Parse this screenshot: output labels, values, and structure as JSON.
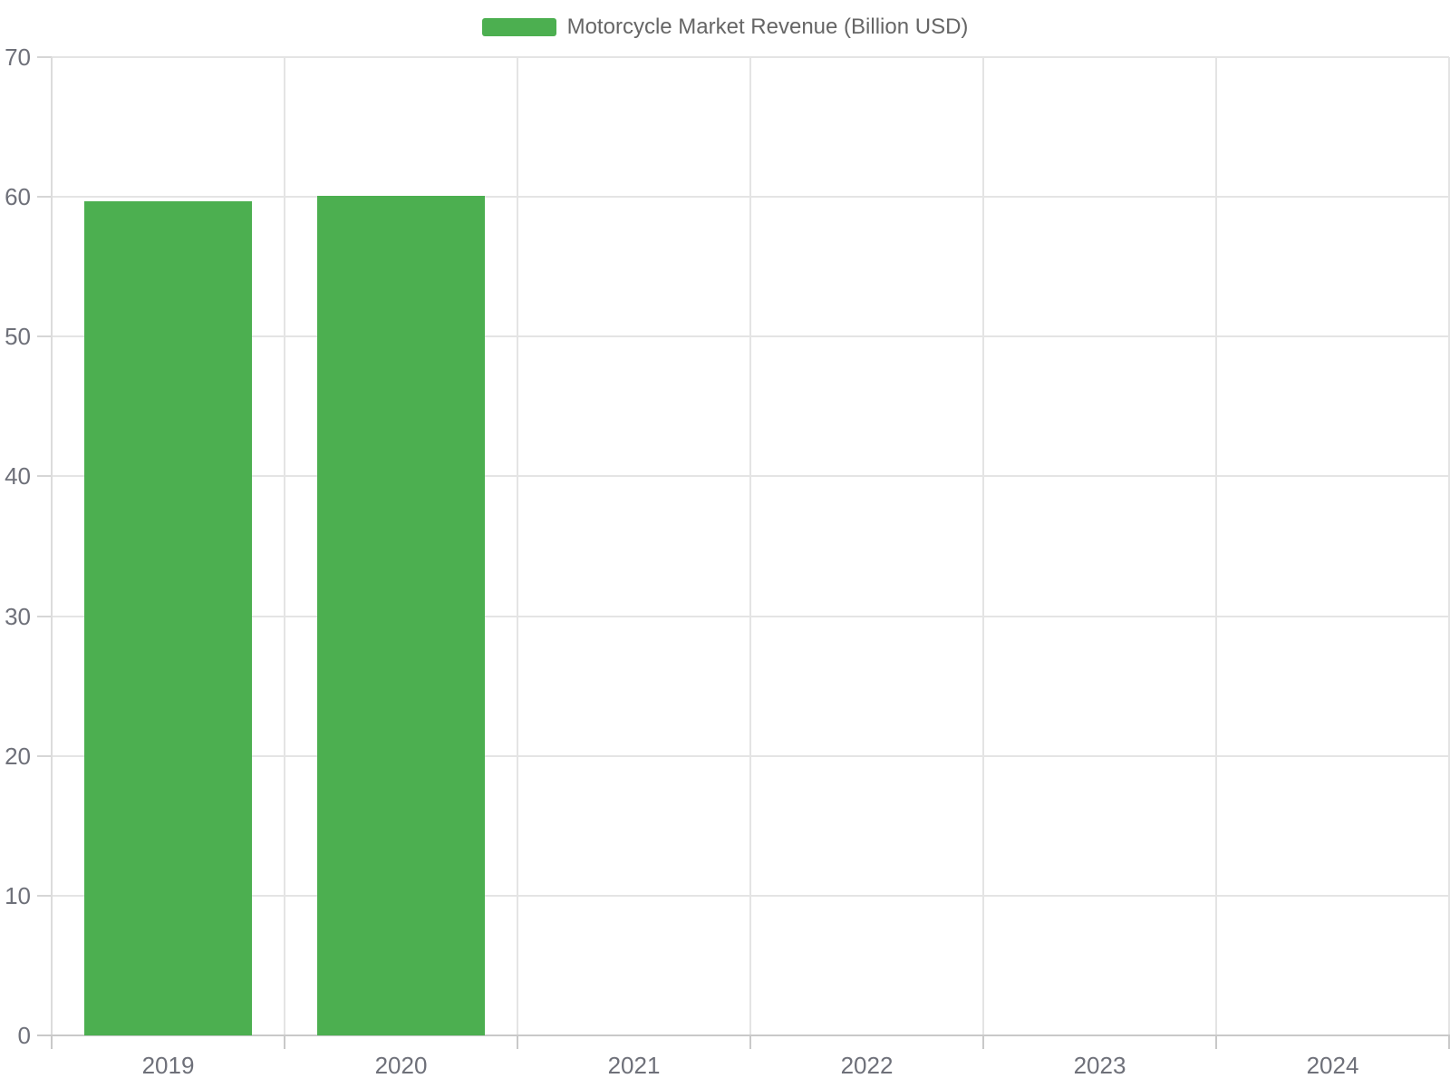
{
  "chart_data": {
    "type": "bar",
    "title": "",
    "categories": [
      "2019",
      "2020",
      "2021",
      "2022",
      "2023",
      "2024"
    ],
    "series": [
      {
        "name": "Motorcycle Market Revenue (Billion USD)",
        "color": "#4caf50",
        "values": [
          59.7,
          60.1,
          null,
          null,
          null,
          null
        ]
      }
    ],
    "xlabel": "",
    "ylabel": "",
    "ylim": [
      0,
      70
    ],
    "yticks": [
      0,
      10,
      20,
      30,
      40,
      50,
      60,
      70
    ],
    "grid": true,
    "legend_position": "top-center",
    "bar_width_fraction": 0.72
  },
  "colors": {
    "bar": "#4caf50",
    "grid_line": "#e4e4e4",
    "y_axis_line": "#dcdcdc",
    "x_axis_line": "#c9c9c9",
    "tick": "#d6d6d6",
    "axis_label": "#6e7079",
    "legend_text": "#666666"
  }
}
